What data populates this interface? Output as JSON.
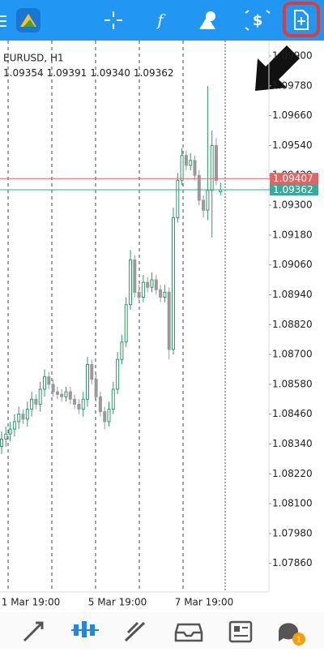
{
  "badge": "1",
  "chart_data": {
    "type": "candlestick",
    "symbol_label": "EURUSD, H1",
    "ohlc_labels": [
      "1.09354",
      "1.09391",
      "1.09340",
      "1.09362"
    ],
    "open": [
      1.0833,
      1.0836,
      1.0838,
      1.084,
      1.0843,
      1.0846,
      1.0844,
      1.0848,
      1.0852,
      1.085,
      1.0856,
      1.0861,
      1.0858,
      1.0855,
      1.0854,
      1.0853,
      1.0855,
      1.0852,
      1.085,
      1.0848,
      1.0852,
      1.0866,
      1.086,
      1.0853,
      1.0847,
      1.0843,
      1.0848,
      1.0856,
      1.0868,
      1.0875,
      1.089,
      1.0908,
      1.0895,
      1.0893,
      1.0899,
      1.0897,
      1.09,
      1.0896,
      1.0893,
      1.0895,
      1.0872,
      1.0925,
      1.094,
      1.095,
      1.0946,
      1.0948,
      1.0942,
      1.0932,
      1.0928,
      1.0936,
      1.0954,
      1.09354
    ],
    "high": [
      1.0839,
      1.0841,
      1.0843,
      1.0846,
      1.0849,
      1.0848,
      1.0851,
      1.0855,
      1.0854,
      1.0859,
      1.0864,
      1.0863,
      1.086,
      1.0857,
      1.0856,
      1.0857,
      1.0857,
      1.0854,
      1.0852,
      1.0855,
      1.0869,
      1.0868,
      1.0862,
      1.0855,
      1.0849,
      1.0851,
      1.0859,
      1.0871,
      1.0878,
      1.0893,
      1.0912,
      1.091,
      1.0898,
      1.0902,
      1.0901,
      1.0903,
      1.0902,
      1.0898,
      1.0898,
      1.0897,
      1.0929,
      1.0943,
      1.0953,
      1.0952,
      1.0951,
      1.095,
      1.0944,
      1.0934,
      1.0978,
      1.096,
      1.0957,
      1.09391
    ],
    "low": [
      1.083,
      1.0833,
      1.0835,
      1.0837,
      1.084,
      1.0842,
      1.0841,
      1.0845,
      1.0848,
      1.0847,
      1.0853,
      1.0856,
      1.0853,
      1.0852,
      1.0851,
      1.0851,
      1.085,
      1.0848,
      1.0846,
      1.0845,
      1.0849,
      1.0858,
      1.0851,
      1.0845,
      1.084,
      1.0841,
      1.0846,
      1.0854,
      1.0866,
      1.0873,
      1.0888,
      1.0893,
      1.0891,
      1.0891,
      1.0895,
      1.0895,
      1.0894,
      1.0891,
      1.0891,
      1.0868,
      1.087,
      1.0923,
      1.0938,
      1.0944,
      1.0944,
      1.094,
      1.093,
      1.0925,
      1.0924,
      1.0917,
      1.0938,
      1.0934
    ],
    "close": [
      1.0836,
      1.0838,
      1.084,
      1.0843,
      1.0846,
      1.0844,
      1.0848,
      1.0852,
      1.085,
      1.0856,
      1.0861,
      1.0858,
      1.0855,
      1.0854,
      1.0853,
      1.0855,
      1.0852,
      1.085,
      1.0848,
      1.0852,
      1.0866,
      1.086,
      1.0853,
      1.0847,
      1.0843,
      1.0848,
      1.0856,
      1.0868,
      1.0875,
      1.089,
      1.0908,
      1.0895,
      1.0893,
      1.0899,
      1.0897,
      1.09,
      1.0896,
      1.0893,
      1.0895,
      1.0872,
      1.0925,
      1.094,
      1.095,
      1.0946,
      1.0948,
      1.0942,
      1.0932,
      1.0928,
      1.0936,
      1.0954,
      1.094,
      1.09362
    ],
    "up_color": "#2e9a6c",
    "down_color": "#9a9a9a",
    "ylim": [
      1.07745,
      1.09962
    ],
    "yticks": [
      {
        "value": 1.0786,
        "label": "1.07860"
      },
      {
        "value": 1.0798,
        "label": "1.07980"
      },
      {
        "value": 1.081,
        "label": "1.08100"
      },
      {
        "value": 1.0822,
        "label": "1.08220"
      },
      {
        "value": 1.0834,
        "label": "1.08340"
      },
      {
        "value": 1.0846,
        "label": "1.08460"
      },
      {
        "value": 1.0858,
        "label": "1.08580"
      },
      {
        "value": 1.087,
        "label": "1.08700"
      },
      {
        "value": 1.0882,
        "label": "1.08820"
      },
      {
        "value": 1.0894,
        "label": "1.08940"
      },
      {
        "value": 1.0906,
        "label": "1.09060"
      },
      {
        "value": 1.0918,
        "label": "1.09180"
      },
      {
        "value": 1.093,
        "label": "1.09300"
      },
      {
        "value": 1.0942,
        "label": "1.09420"
      },
      {
        "value": 1.0954,
        "label": "1.09540"
      },
      {
        "value": 1.0966,
        "label": "1.09660"
      },
      {
        "value": 1.0978,
        "label": "1.09780"
      },
      {
        "value": 1.099,
        "label": "1.09900"
      }
    ],
    "xtick_labels": [
      "1 Mar 19:00",
      "5 Mar 19:00",
      "7 Mar 19:00"
    ],
    "price_lines": [
      {
        "value": 1.09407,
        "color": "#e06666"
      },
      {
        "value": 1.09362,
        "color": "#3aa89a"
      }
    ]
  }
}
